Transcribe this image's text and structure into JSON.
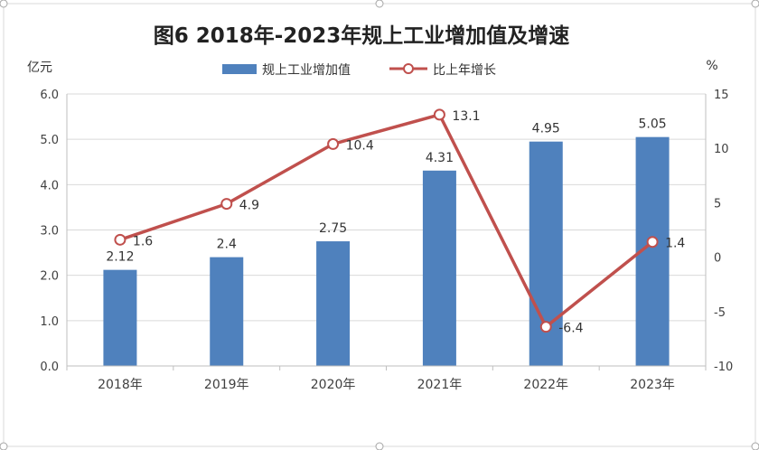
{
  "chart_data": {
    "type": "bar",
    "title": "图6 2018年-2023年规上工业增加值及增速",
    "categories": [
      "2018年",
      "2019年",
      "2020年",
      "2021年",
      "2022年",
      "2023年"
    ],
    "y_left": {
      "unit_label": "亿元",
      "ylim": [
        0,
        6
      ],
      "ticks": [
        "0.0",
        "1.0",
        "2.0",
        "3.0",
        "4.0",
        "5.0",
        "6.0"
      ]
    },
    "y_right": {
      "unit_label": "%",
      "ylim": [
        -10,
        15
      ],
      "ticks": [
        "-10",
        "-5",
        "0",
        "5",
        "10",
        "15"
      ]
    },
    "grid": true,
    "legend_position": "top-center",
    "series": [
      {
        "name": "规上工业增加值",
        "type": "bar",
        "axis": "left",
        "color": "#4F81BD",
        "values": [
          2.12,
          2.4,
          2.75,
          4.31,
          4.95,
          5.05
        ],
        "labels": [
          "2.12",
          "2.4",
          "2.75",
          "4.31",
          "4.95",
          "5.05"
        ]
      },
      {
        "name": "比上年增长",
        "type": "line",
        "axis": "right",
        "color": "#C0504D",
        "values": [
          1.6,
          4.9,
          10.4,
          13.1,
          -6.4,
          1.4
        ],
        "labels": [
          "1.6",
          "4.9",
          "10.4",
          "13.1",
          "-6.4",
          "1.4"
        ]
      }
    ]
  }
}
